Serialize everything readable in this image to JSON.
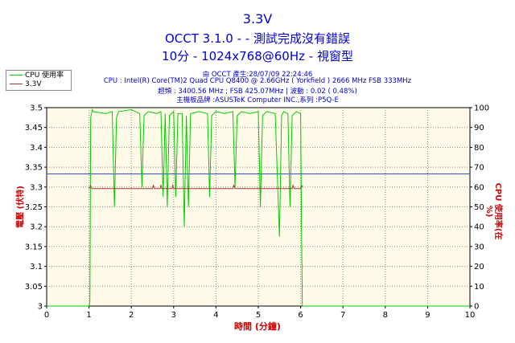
{
  "header": {
    "title": "3.3V",
    "subtitle": "OCCT 3.1.0 -  - 測試完成沒有錯誤",
    "subtitle2": "10分 - 1024x768@60Hz - 視窗型",
    "info1": "由 OCCT 產生:28/07/09 22:24:46",
    "info2": "CPU : Intel(R) Core(TM)2 Quad CPU Q8400 @ 2.66GHz ( Yorkfield ) 2666 MHz FSB 333MHz",
    "info3": "超頻 : 3400.56 MHz ; FSB 425.07MHz | 波動 : 0.02 ( 0.48%)",
    "info4": "主機板品牌 :ASUSTeK Computer INC.,系列 :P5Q-E"
  },
  "chart_data": {
    "type": "line",
    "xlabel": "時間 (分鐘)",
    "ylabel_left": "電壓 (伏特)",
    "ylabel_right": "CPU 使用率(在 %)",
    "xlim": [
      0,
      10
    ],
    "ylim_left": [
      3,
      3.5
    ],
    "ylim_right": [
      0,
      100
    ],
    "x_ticks": [
      "0",
      "1",
      "2",
      "3",
      "4",
      "5",
      "6",
      "7",
      "8",
      "9",
      "10"
    ],
    "y_ticks_left": [
      "3",
      "3.05",
      "3.1",
      "3.15",
      "3.2",
      "3.25",
      "3.3",
      "3.35",
      "3.4",
      "3.45",
      "3.5"
    ],
    "y_ticks_right": [
      "0",
      "10",
      "20",
      "30",
      "40",
      "50",
      "60",
      "70",
      "80",
      "90",
      "100"
    ],
    "grid": true,
    "background": "#fffbe8",
    "reference_line": {
      "axis": "left",
      "value": 3.333,
      "color": "#3355cc"
    },
    "series": [
      {
        "name": "CPU 使用率",
        "axis": "right",
        "color": "#00cc00",
        "x": [
          0,
          1.0,
          1.02,
          1.04,
          1.08,
          1.1,
          1.4,
          1.55,
          1.6,
          1.65,
          1.7,
          2.0,
          2.2,
          2.25,
          2.3,
          2.4,
          2.6,
          2.7,
          2.75,
          2.8,
          2.85,
          2.9,
          3.0,
          3.05,
          3.1,
          3.2,
          3.25,
          3.3,
          3.35,
          3.4,
          3.6,
          3.8,
          3.85,
          3.9,
          4.0,
          4.2,
          4.4,
          4.45,
          4.5,
          4.6,
          4.8,
          5.0,
          5.05,
          5.1,
          5.2,
          5.4,
          5.5,
          5.55,
          5.6,
          5.7,
          5.75,
          5.8,
          5.9,
          6.0,
          6.02,
          6.04,
          6.1,
          7,
          8,
          9,
          10
        ],
        "y": [
          0,
          0,
          2,
          95,
          99,
          98,
          97,
          98,
          50,
          95,
          98,
          99,
          97,
          60,
          96,
          98,
          97,
          98,
          55,
          97,
          50,
          96,
          98,
          55,
          97,
          97,
          40,
          96,
          50,
          97,
          98,
          97,
          55,
          96,
          98,
          97,
          98,
          60,
          96,
          98,
          97,
          98,
          50,
          96,
          98,
          97,
          35,
          96,
          98,
          97,
          50,
          96,
          98,
          97,
          40,
          0,
          0,
          0,
          0,
          0,
          0
        ]
      },
      {
        "name": "3.3V",
        "axis": "left",
        "color": "#aa3333",
        "x": [
          1.0,
          1.04,
          1.06,
          1.1,
          2.5,
          2.52,
          2.55,
          2.6,
          2.68,
          2.7,
          2.72,
          2.76,
          2.96,
          2.98,
          3.0,
          3.04,
          4.4,
          4.42,
          4.45,
          4.5,
          5.8,
          5.82,
          5.85,
          5.9,
          6.0,
          6.05
        ],
        "y": [
          3.296,
          3.304,
          3.296,
          3.296,
          3.296,
          3.304,
          3.296,
          3.296,
          3.296,
          3.304,
          3.296,
          3.296,
          3.296,
          3.304,
          3.296,
          3.296,
          3.296,
          3.304,
          3.296,
          3.296,
          3.296,
          3.304,
          3.296,
          3.296,
          3.296,
          3.304
        ]
      }
    ]
  }
}
